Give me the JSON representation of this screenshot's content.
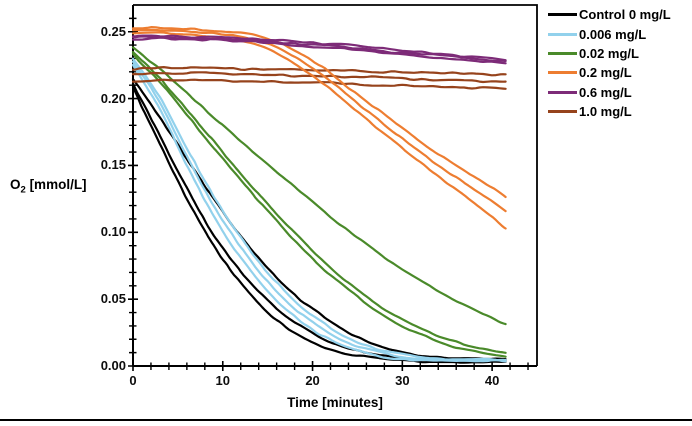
{
  "page": {
    "background": "#ffffff",
    "footer_rule_color": "#000000"
  },
  "chart_data": {
    "type": "line",
    "title": "",
    "xlabel": "Time [minutes]",
    "ylabel": "O2 [mmol/L]",
    "ylabel_parts": {
      "main": "O",
      "sub": "2",
      "rest": " [mmol/L]"
    },
    "xlim": [
      0,
      45
    ],
    "ylim": [
      0,
      0.27
    ],
    "grid": false,
    "legend_position": "top-right",
    "x_major_ticks": [
      0,
      10,
      20,
      30,
      40
    ],
    "x_tick_labels": [
      "0",
      "10",
      "20",
      "30",
      "40"
    ],
    "x_minor_step": 2,
    "y_major_ticks": [
      0,
      0.05,
      0.1,
      0.15,
      0.2,
      0.25
    ],
    "y_tick_labels": [
      "0.00",
      "0.05",
      "0.10",
      "0.15",
      "0.20",
      "0.25"
    ],
    "y_minor_step": 0.01,
    "time_points": [
      0,
      3,
      6,
      9,
      12,
      15,
      18,
      21,
      24,
      27,
      30,
      33,
      36,
      39,
      41.5
    ],
    "series": [
      {
        "name": "Control 0 mg/L",
        "color": "#000000",
        "replicates": [
          [
            0.208,
            0.166,
            0.125,
            0.09,
            0.062,
            0.04,
            0.025,
            0.015,
            0.009,
            0.006,
            0.004,
            0.003,
            0.003,
            0.003,
            0.003
          ],
          [
            0.211,
            0.172,
            0.133,
            0.098,
            0.071,
            0.049,
            0.033,
            0.021,
            0.013,
            0.009,
            0.006,
            0.005,
            0.004,
            0.004,
            0.004
          ],
          [
            0.215,
            0.186,
            0.155,
            0.125,
            0.097,
            0.073,
            0.053,
            0.038,
            0.025,
            0.016,
            0.01,
            0.007,
            0.006,
            0.005,
            0.005
          ]
        ]
      },
      {
        "name": "0.006 mg/L",
        "color": "#92D1EC",
        "replicates": [
          [
            0.225,
            0.192,
            0.15,
            0.112,
            0.081,
            0.056,
            0.037,
            0.023,
            0.014,
            0.008,
            0.005,
            0.004,
            0.004,
            0.004,
            0.004
          ],
          [
            0.228,
            0.197,
            0.157,
            0.12,
            0.089,
            0.063,
            0.043,
            0.028,
            0.017,
            0.011,
            0.007,
            0.005,
            0.004,
            0.004,
            0.004
          ],
          [
            0.23,
            0.201,
            0.163,
            0.127,
            0.096,
            0.07,
            0.049,
            0.033,
            0.021,
            0.013,
            0.009,
            0.006,
            0.005,
            0.005,
            0.005
          ]
        ]
      },
      {
        "name": "0.02 mg/L",
        "color": "#4A8A2A",
        "replicates": [
          [
            0.233,
            0.212,
            0.188,
            0.163,
            0.139,
            0.116,
            0.094,
            0.074,
            0.057,
            0.042,
            0.03,
            0.021,
            0.014,
            0.01,
            0.007
          ],
          [
            0.235,
            0.215,
            0.192,
            0.168,
            0.144,
            0.121,
            0.1,
            0.08,
            0.062,
            0.047,
            0.035,
            0.025,
            0.018,
            0.013,
            0.01
          ],
          [
            0.238,
            0.222,
            0.204,
            0.186,
            0.168,
            0.151,
            0.134,
            0.117,
            0.101,
            0.086,
            0.072,
            0.06,
            0.049,
            0.039,
            0.031
          ]
        ]
      },
      {
        "name": "1.0 mg/L",
        "color": "#96431C",
        "replicates": [
          [
            0.222,
            0.223,
            0.223,
            0.223,
            0.222,
            0.222,
            0.222,
            0.221,
            0.221,
            0.22,
            0.22,
            0.219,
            0.219,
            0.218,
            0.218
          ],
          [
            0.218,
            0.219,
            0.219,
            0.219,
            0.218,
            0.218,
            0.217,
            0.217,
            0.216,
            0.216,
            0.215,
            0.214,
            0.214,
            0.213,
            0.213
          ],
          [
            0.213,
            0.214,
            0.214,
            0.214,
            0.213,
            0.213,
            0.212,
            0.212,
            0.211,
            0.21,
            0.21,
            0.209,
            0.208,
            0.208,
            0.207
          ]
        ]
      },
      {
        "name": "0.2 mg/L",
        "color": "#ED7D31",
        "replicates": [
          [
            0.253,
            0.253,
            0.252,
            0.251,
            0.249,
            0.245,
            0.236,
            0.224,
            0.208,
            0.193,
            0.178,
            0.163,
            0.15,
            0.138,
            0.126
          ],
          [
            0.251,
            0.251,
            0.25,
            0.249,
            0.246,
            0.241,
            0.231,
            0.218,
            0.202,
            0.186,
            0.17,
            0.155,
            0.141,
            0.128,
            0.116
          ],
          [
            0.249,
            0.249,
            0.248,
            0.246,
            0.243,
            0.237,
            0.226,
            0.212,
            0.196,
            0.179,
            0.163,
            0.147,
            0.132,
            0.117,
            0.103
          ]
        ]
      },
      {
        "name": "0.6 mg/L",
        "color": "#7D2B78",
        "replicates": [
          [
            0.247,
            0.247,
            0.246,
            0.246,
            0.245,
            0.244,
            0.243,
            0.241,
            0.24,
            0.238,
            0.236,
            0.234,
            0.232,
            0.231,
            0.229
          ],
          [
            0.246,
            0.246,
            0.245,
            0.245,
            0.244,
            0.243,
            0.241,
            0.24,
            0.238,
            0.236,
            0.234,
            0.233,
            0.231,
            0.229,
            0.228
          ],
          [
            0.244,
            0.245,
            0.244,
            0.244,
            0.243,
            0.242,
            0.24,
            0.238,
            0.237,
            0.235,
            0.233,
            0.231,
            0.229,
            0.228,
            0.226
          ]
        ]
      }
    ],
    "legend_order": [
      "Control 0 mg/L",
      "0.006 mg/L",
      "0.02 mg/L",
      "0.2 mg/L",
      "0.6 mg/L",
      "1.0 mg/L"
    ]
  }
}
